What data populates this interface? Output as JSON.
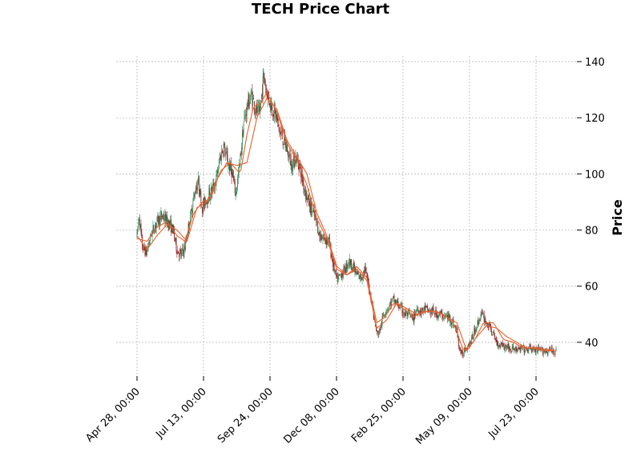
{
  "chart_data": {
    "type": "candlestick",
    "title": "TECH Price Chart",
    "ylabel": "Price",
    "xlabel": "",
    "ylim": [
      28,
      142
    ],
    "yticks": [
      40,
      60,
      80,
      100,
      120,
      140
    ],
    "xticks": [
      "Apr 28, 00:00",
      "Jul 13, 00:00",
      "Sep 24, 00:00",
      "Dec 08, 00:00",
      "Feb 25, 00:00",
      "May 09, 00:00",
      "Jul 23, 00:00"
    ],
    "grid": true,
    "y_axis_side": "right",
    "colors": {
      "up": "#2e8b57",
      "down": "#8b1a1a",
      "moving_average": "#e8602c",
      "grid": "#b0b0b0"
    },
    "moving_averages": 2,
    "bars": 630,
    "price_path": [
      [
        0,
        78
      ],
      [
        3,
        85
      ],
      [
        8,
        74
      ],
      [
        14,
        72
      ],
      [
        22,
        79
      ],
      [
        30,
        83
      ],
      [
        38,
        85
      ],
      [
        46,
        83
      ],
      [
        54,
        80
      ],
      [
        60,
        73
      ],
      [
        66,
        71
      ],
      [
        72,
        74
      ],
      [
        80,
        85
      ],
      [
        88,
        95
      ],
      [
        92,
        97
      ],
      [
        98,
        88
      ],
      [
        104,
        91
      ],
      [
        110,
        93
      ],
      [
        118,
        97
      ],
      [
        124,
        105
      ],
      [
        130,
        110
      ],
      [
        136,
        104
      ],
      [
        142,
        101
      ],
      [
        148,
        93
      ],
      [
        154,
        103
      ],
      [
        160,
        118
      ],
      [
        166,
        125
      ],
      [
        172,
        128
      ],
      [
        178,
        123
      ],
      [
        184,
        121
      ],
      [
        190,
        135
      ],
      [
        196,
        128
      ],
      [
        202,
        124
      ],
      [
        208,
        121
      ],
      [
        214,
        115
      ],
      [
        220,
        112
      ],
      [
        226,
        108
      ],
      [
        232,
        103
      ],
      [
        238,
        106
      ],
      [
        244,
        103
      ],
      [
        250,
        96
      ],
      [
        256,
        91
      ],
      [
        262,
        87
      ],
      [
        268,
        84
      ],
      [
        274,
        78
      ],
      [
        280,
        77
      ],
      [
        288,
        76
      ],
      [
        294,
        68
      ],
      [
        300,
        62
      ],
      [
        306,
        64
      ],
      [
        312,
        66
      ],
      [
        318,
        69
      ],
      [
        324,
        67
      ],
      [
        330,
        64
      ],
      [
        336,
        63
      ],
      [
        342,
        66
      ],
      [
        348,
        60
      ],
      [
        352,
        55
      ],
      [
        356,
        48
      ],
      [
        360,
        43
      ],
      [
        364,
        44
      ],
      [
        368,
        48
      ],
      [
        372,
        51
      ],
      [
        378,
        53
      ],
      [
        384,
        55
      ],
      [
        390,
        54
      ],
      [
        396,
        52
      ],
      [
        402,
        50
      ],
      [
        408,
        50
      ],
      [
        414,
        48
      ],
      [
        420,
        52
      ],
      [
        426,
        51
      ],
      [
        432,
        52
      ],
      [
        438,
        51
      ],
      [
        444,
        51
      ],
      [
        450,
        50
      ],
      [
        456,
        50
      ],
      [
        462,
        49
      ],
      [
        468,
        49
      ],
      [
        474,
        47
      ],
      [
        480,
        44
      ],
      [
        484,
        38
      ],
      [
        488,
        35
      ],
      [
        492,
        38
      ],
      [
        496,
        39
      ],
      [
        500,
        40
      ],
      [
        504,
        42
      ],
      [
        508,
        45
      ],
      [
        512,
        47
      ],
      [
        516,
        50
      ],
      [
        520,
        49
      ],
      [
        524,
        47
      ],
      [
        528,
        46
      ],
      [
        532,
        44
      ],
      [
        536,
        42
      ],
      [
        540,
        40
      ],
      [
        544,
        39
      ],
      [
        548,
        40
      ],
      [
        552,
        38
      ],
      [
        556,
        39
      ],
      [
        560,
        37
      ],
      [
        566,
        38
      ],
      [
        572,
        37
      ],
      [
        578,
        38
      ],
      [
        584,
        37
      ],
      [
        590,
        38
      ],
      [
        596,
        37
      ],
      [
        602,
        37
      ],
      [
        608,
        37
      ],
      [
        614,
        37
      ],
      [
        620,
        37
      ],
      [
        629,
        37
      ]
    ],
    "moving_average_1": [
      [
        0,
        77
      ],
      [
        15,
        76
      ],
      [
        30,
        81
      ],
      [
        45,
        83
      ],
      [
        60,
        78
      ],
      [
        72,
        76
      ],
      [
        85,
        86
      ],
      [
        98,
        90
      ],
      [
        110,
        91
      ],
      [
        125,
        101
      ],
      [
        140,
        104
      ],
      [
        155,
        100
      ],
      [
        165,
        114
      ],
      [
        175,
        124
      ],
      [
        185,
        125
      ],
      [
        195,
        129
      ],
      [
        210,
        122
      ],
      [
        225,
        111
      ],
      [
        240,
        105
      ],
      [
        255,
        96
      ],
      [
        270,
        84
      ],
      [
        285,
        77
      ],
      [
        300,
        66
      ],
      [
        315,
        64
      ],
      [
        330,
        67
      ],
      [
        345,
        63
      ],
      [
        360,
        47
      ],
      [
        372,
        49
      ],
      [
        385,
        54
      ],
      [
        400,
        52
      ],
      [
        415,
        49
      ],
      [
        430,
        51
      ],
      [
        445,
        51
      ],
      [
        460,
        50
      ],
      [
        475,
        47
      ],
      [
        490,
        37
      ],
      [
        505,
        40
      ],
      [
        520,
        47
      ],
      [
        535,
        47
      ],
      [
        550,
        41
      ],
      [
        565,
        40
      ],
      [
        580,
        38
      ],
      [
        595,
        38
      ],
      [
        610,
        37
      ],
      [
        629,
        37
      ]
    ],
    "moving_average_2": [
      [
        0,
        78
      ],
      [
        15,
        73
      ],
      [
        30,
        78
      ],
      [
        45,
        82
      ],
      [
        60,
        80
      ],
      [
        75,
        76
      ],
      [
        90,
        88
      ],
      [
        105,
        90
      ],
      [
        120,
        98
      ],
      [
        135,
        104
      ],
      [
        150,
        103
      ],
      [
        165,
        104
      ],
      [
        180,
        120
      ],
      [
        195,
        127
      ],
      [
        210,
        123
      ],
      [
        225,
        112
      ],
      [
        240,
        106
      ],
      [
        255,
        100
      ],
      [
        270,
        86
      ],
      [
        285,
        78
      ],
      [
        300,
        67
      ],
      [
        315,
        64
      ],
      [
        330,
        66
      ],
      [
        345,
        62
      ],
      [
        360,
        45
      ],
      [
        375,
        48
      ],
      [
        390,
        54
      ],
      [
        405,
        52
      ],
      [
        420,
        50
      ],
      [
        435,
        51
      ],
      [
        450,
        51
      ],
      [
        465,
        49
      ],
      [
        480,
        47
      ],
      [
        495,
        37
      ],
      [
        510,
        42
      ],
      [
        525,
        46
      ],
      [
        540,
        45
      ],
      [
        555,
        42
      ],
      [
        570,
        40
      ],
      [
        585,
        38
      ],
      [
        600,
        38
      ],
      [
        629,
        37
      ]
    ]
  }
}
